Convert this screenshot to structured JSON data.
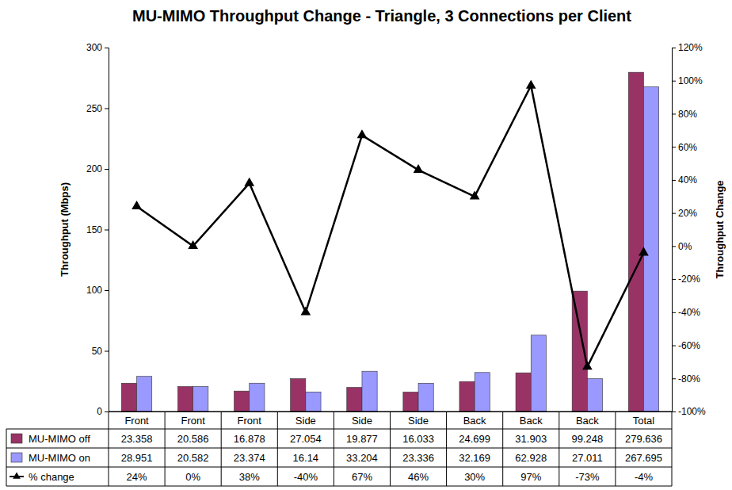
{
  "chart_data": {
    "type": "bar",
    "title": "MU-MIMO Throughput Change - Triangle, 3 Connections per Client",
    "y_label": "Throughput (Mbps)",
    "y2_label": "Throughput Change",
    "categories": [
      "Front",
      "Front",
      "Front",
      "Side",
      "Side",
      "Side",
      "Back",
      "Back",
      "Back",
      "Total"
    ],
    "series": [
      {
        "name": "MU-MIMO off",
        "color": "#993366",
        "values": [
          23.358,
          20.586,
          16.878,
          27.054,
          19.877,
          16.033,
          24.699,
          31.903,
          99.248,
          279.636
        ]
      },
      {
        "name": "MU-MIMO on",
        "color": "#9999ff",
        "values": [
          28.951,
          20.582,
          23.374,
          16.14,
          33.204,
          23.336,
          32.169,
          62.928,
          27.011,
          267.695
        ]
      },
      {
        "name": "% change",
        "type": "line",
        "axis": "y2",
        "color": "#000000",
        "marker": "triangle",
        "values": [
          24,
          0,
          38,
          -40,
          67,
          46,
          30,
          97,
          -73,
          -4
        ],
        "value_labels": [
          "24%",
          "0%",
          "38%",
          "-40%",
          "67%",
          "46%",
          "30%",
          "97%",
          "-73%",
          "-4%"
        ]
      }
    ],
    "ylim": [
      0,
      300
    ],
    "yticks": [
      0,
      50,
      100,
      150,
      200,
      250,
      300
    ],
    "y2lim": [
      -100,
      120
    ],
    "y2ticks": [
      {
        "value": -100,
        "label": "-100%"
      },
      {
        "value": -80,
        "label": "-80%"
      },
      {
        "value": -60,
        "label": "-60%"
      },
      {
        "value": -40,
        "label": "-40%"
      },
      {
        "value": -20,
        "label": "-20%"
      },
      {
        "value": 0,
        "label": "0%"
      },
      {
        "value": 20,
        "label": "20%"
      },
      {
        "value": 40,
        "label": "40%"
      },
      {
        "value": 60,
        "label": "60%"
      },
      {
        "value": 80,
        "label": "80%"
      },
      {
        "value": 100,
        "label": "100%"
      },
      {
        "value": 120,
        "label": "120%"
      }
    ]
  }
}
